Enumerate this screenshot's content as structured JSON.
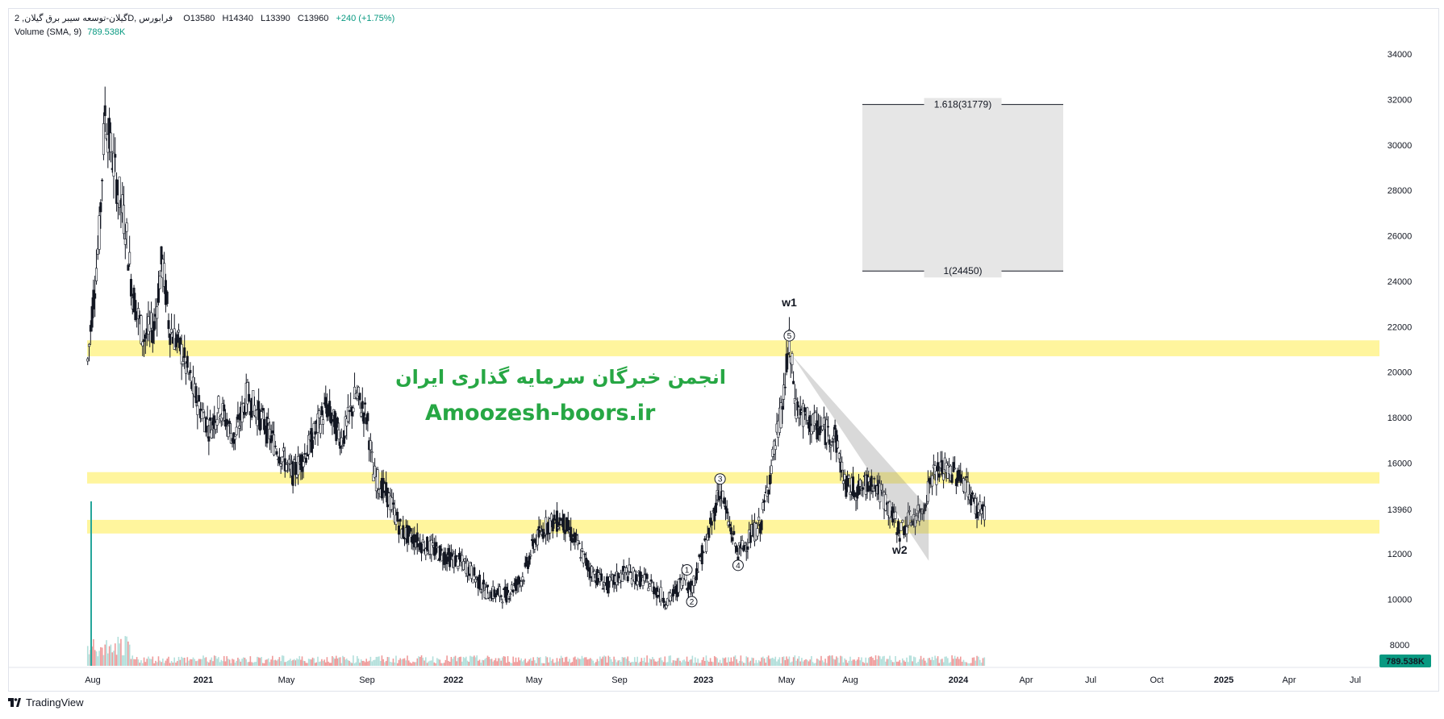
{
  "header": {
    "symbol": "گیلان-توسعه سیبر برق گیلان, 2D, فرابورس",
    "open": "O13580",
    "high": "H14340",
    "low": "L13390",
    "close": "C13960",
    "change": "+240 (+1.75%)",
    "volume_label": "Volume (SMA, 9)",
    "volume_value": "789.538K"
  },
  "watermark": {
    "persian": "انجمن خبرگان سرمایه گذاری ایران",
    "site": "Amoozesh-boors.ir"
  },
  "footer": {
    "brand": "TradingView"
  },
  "chart_data": {
    "type": "candlestick",
    "y_ticks": [
      8000,
      10000,
      12000,
      13960,
      14000,
      16000,
      18000,
      20000,
      22000,
      24000,
      26000,
      28000,
      30000,
      32000,
      34000
    ],
    "y_tick_labels": [
      "8000",
      "10000",
      "12000",
      "13960",
      "16000",
      "18000",
      "20000",
      "22000",
      "24000",
      "26000",
      "28000",
      "30000",
      "32000",
      "34000"
    ],
    "ylim": [
      7200,
      35300
    ],
    "x_tick_labels": [
      "Aug",
      "2021",
      "May",
      "Sep",
      "2022",
      "May",
      "Sep",
      "2023",
      "May",
      "Aug",
      "2024",
      "Apr",
      "Jul",
      "Oct",
      "2025",
      "Apr",
      "Jul"
    ],
    "last_price_label": "789.538K",
    "price_path": [
      [
        "2020-07-25",
        20500
      ],
      [
        "2020-08-01",
        23000
      ],
      [
        "2020-08-10",
        26000
      ],
      [
        "2020-08-18",
        31500
      ],
      [
        "2020-08-25",
        30000
      ],
      [
        "2020-09-05",
        28000
      ],
      [
        "2020-09-15",
        26500
      ],
      [
        "2020-09-25",
        23500
      ],
      [
        "2020-10-10",
        21500
      ],
      [
        "2020-10-25",
        22000
      ],
      [
        "2020-11-05",
        25000
      ],
      [
        "2020-11-15",
        22000
      ],
      [
        "2020-12-01",
        21000
      ],
      [
        "2020-12-20",
        19000
      ],
      [
        "2021-01-10",
        17500
      ],
      [
        "2021-01-25",
        18500
      ],
      [
        "2021-02-15",
        17000
      ],
      [
        "2021-03-05",
        19000
      ],
      [
        "2021-03-25",
        18000
      ],
      [
        "2021-04-20",
        16500
      ],
      [
        "2021-05-10",
        15500
      ],
      [
        "2021-06-01",
        16500
      ],
      [
        "2021-07-01",
        18500
      ],
      [
        "2021-07-25",
        17000
      ],
      [
        "2021-08-15",
        19000
      ],
      [
        "2021-09-01",
        18000
      ],
      [
        "2021-09-10",
        15500
      ],
      [
        "2021-10-01",
        14500
      ],
      [
        "2021-10-20",
        13000
      ],
      [
        "2021-11-15",
        12500
      ],
      [
        "2021-12-15",
        12000
      ],
      [
        "2022-01-20",
        11500
      ],
      [
        "2022-02-20",
        10300
      ],
      [
        "2022-03-20",
        10200
      ],
      [
        "2022-04-15",
        11000
      ],
      [
        "2022-05-01",
        12500
      ],
      [
        "2022-05-20",
        13300
      ],
      [
        "2022-06-10",
        13500
      ],
      [
        "2022-07-01",
        12500
      ],
      [
        "2022-07-20",
        11300
      ],
      [
        "2022-08-15",
        10600
      ],
      [
        "2022-09-10",
        11200
      ],
      [
        "2022-10-15",
        10700
      ],
      [
        "2022-11-10",
        9900
      ],
      [
        "2022-11-25",
        10500
      ],
      [
        "2022-12-05",
        11200
      ],
      [
        "2022-12-12",
        10300
      ],
      [
        "2022-12-25",
        11500
      ],
      [
        "2023-01-10",
        13000
      ],
      [
        "2023-01-25",
        15000
      ],
      [
        "2023-02-05",
        13500
      ],
      [
        "2023-02-20",
        12000
      ],
      [
        "2023-03-10",
        12800
      ],
      [
        "2023-03-25",
        13300
      ],
      [
        "2023-04-10",
        16000
      ],
      [
        "2023-04-25",
        18500
      ],
      [
        "2023-05-05",
        21200
      ],
      [
        "2023-05-15",
        18500
      ],
      [
        "2023-06-01",
        17800
      ],
      [
        "2023-06-20",
        17500
      ],
      [
        "2023-07-10",
        17200
      ],
      [
        "2023-07-25",
        15000
      ],
      [
        "2023-08-15",
        14800
      ],
      [
        "2023-09-01",
        15300
      ],
      [
        "2023-09-20",
        14300
      ],
      [
        "2023-10-10",
        13000
      ],
      [
        "2023-10-25",
        13500
      ],
      [
        "2023-11-10",
        13800
      ],
      [
        "2023-11-25",
        15500
      ],
      [
        "2023-12-10",
        15700
      ],
      [
        "2023-12-25",
        15600
      ],
      [
        "2024-01-10",
        15200
      ],
      [
        "2024-01-25",
        14000
      ],
      [
        "2024-02-05",
        13960
      ]
    ],
    "zones": [
      {
        "from": 20700,
        "to": 21400
      },
      {
        "from": 15100,
        "to": 15600
      },
      {
        "from": 12900,
        "to": 13500
      }
    ],
    "fib": {
      "box_top": 31779,
      "box_bottom": 24450,
      "levels": [
        {
          "label": "1.618(31779)",
          "value": 31779
        },
        {
          "label": "1(24450)",
          "value": 24450
        }
      ],
      "from": "2023-08-01",
      "to": "2023-12-10"
    },
    "wave_labels": [
      {
        "label": "1",
        "date": "2022-12-08",
        "value": 11300
      },
      {
        "label": "2",
        "date": "2022-12-15",
        "value": 9900
      },
      {
        "label": "3",
        "date": "2023-01-25",
        "value": 15300
      },
      {
        "label": "4",
        "date": "2023-02-20",
        "value": 11500
      },
      {
        "label": "5",
        "date": "2023-05-05",
        "value": 21600
      }
    ],
    "text_labels": [
      {
        "label": "w1",
        "date": "2023-05-05",
        "value": 22900
      },
      {
        "label": "w2",
        "date": "2023-10-10",
        "value": 12000
      }
    ],
    "channel": {
      "start": [
        "2023-05-10",
        20700
      ],
      "end": [
        "2023-11-20",
        11700
      ],
      "start2": [
        "2023-05-05",
        19300
      ],
      "end2": [
        "2023-11-20",
        14000
      ]
    }
  },
  "colors": {
    "zone": "#fff59d",
    "candle": "#131722",
    "volume": "#ef9a9a",
    "volume_green": "#26a69a",
    "accent": "#089981",
    "watermark": "#27a744"
  }
}
